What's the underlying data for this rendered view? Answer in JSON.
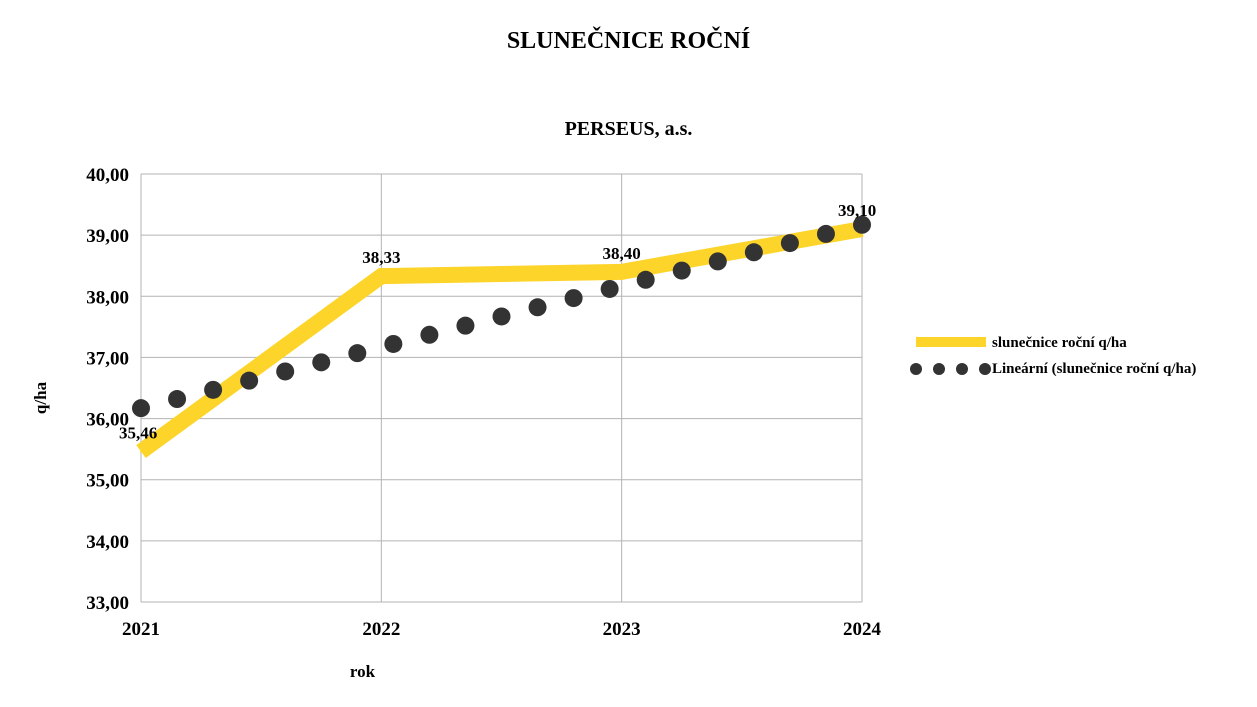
{
  "chart_data": {
    "type": "line",
    "title": "SLUNEČNICE ROČNÍ",
    "subtitle": "PERSEUS, a.s.",
    "xlabel": "rok",
    "ylabel": "q/ha",
    "categories": [
      "2021",
      "2022",
      "2023",
      "2024"
    ],
    "ylim": [
      33,
      40
    ],
    "yticks": [
      "33,00",
      "34,00",
      "35,00",
      "36,00",
      "37,00",
      "38,00",
      "39,00",
      "40,00"
    ],
    "grid": true,
    "legend_position": "right",
    "series": [
      {
        "name": "slunečnice roční q/ha",
        "values": [
          35.46,
          38.33,
          38.4,
          39.1
        ],
        "data_labels": [
          "35,46",
          "38,33",
          "38,40",
          "39,10"
        ],
        "color": "#FDD429",
        "style": "thick-line"
      },
      {
        "name": "Lineární (slunečnice roční q/ha)",
        "values": [
          36.17,
          37.17,
          38.17,
          39.17
        ],
        "color": "#333333",
        "style": "dotted"
      }
    ]
  }
}
